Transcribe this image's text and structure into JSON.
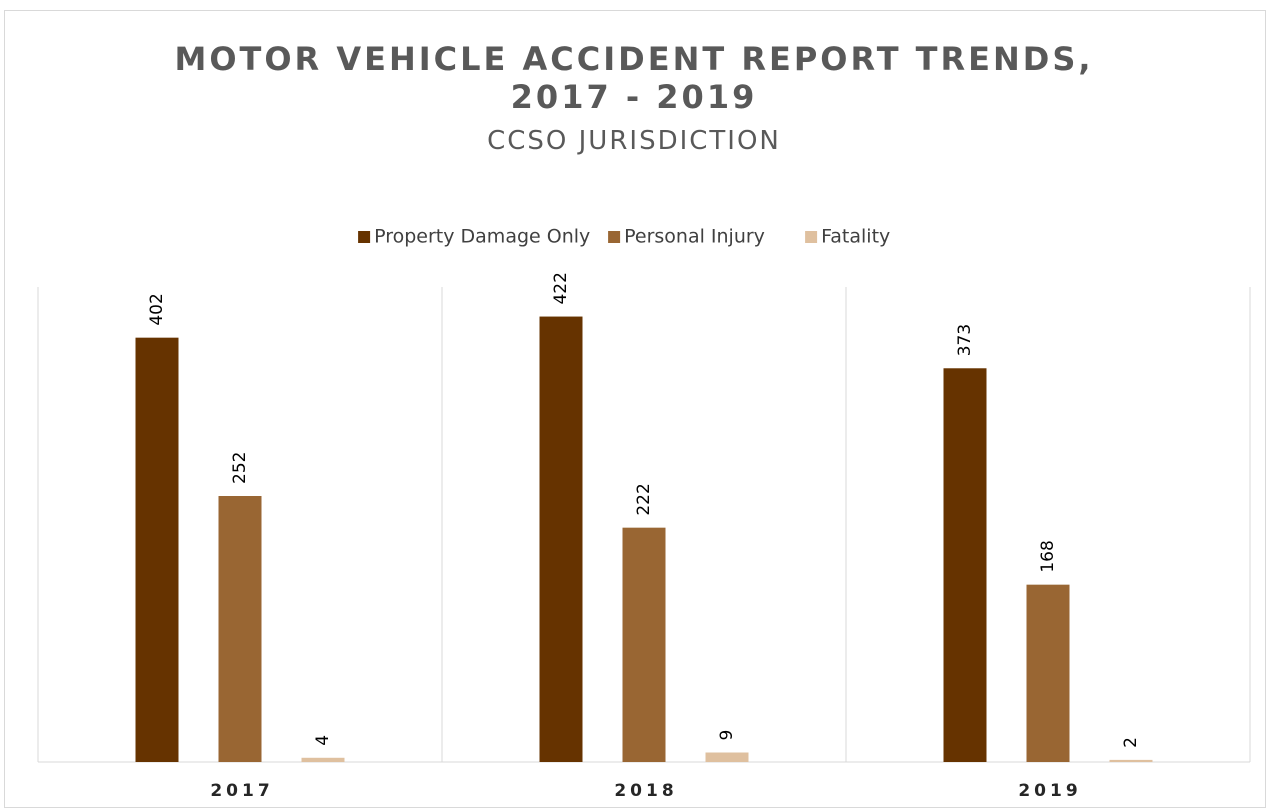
{
  "chart_data": {
    "type": "bar",
    "title": "MOTOR VEHICLE ACCIDENT REPORT TRENDS, 2017 - 2019",
    "subtitle": "CCSO JURISDICTION",
    "categories": [
      "2017",
      "2018",
      "2019"
    ],
    "series": [
      {
        "name": "Property Damage Only",
        "color": "#663300",
        "values": [
          402,
          422,
          373
        ]
      },
      {
        "name": "Personal Injury",
        "color": "#996633",
        "values": [
          252,
          222,
          168
        ]
      },
      {
        "name": "Fatality",
        "color": "#dfc09f",
        "values": [
          4,
          9,
          2
        ]
      }
    ],
    "ylim": [
      0,
      450
    ],
    "legend": "top"
  }
}
